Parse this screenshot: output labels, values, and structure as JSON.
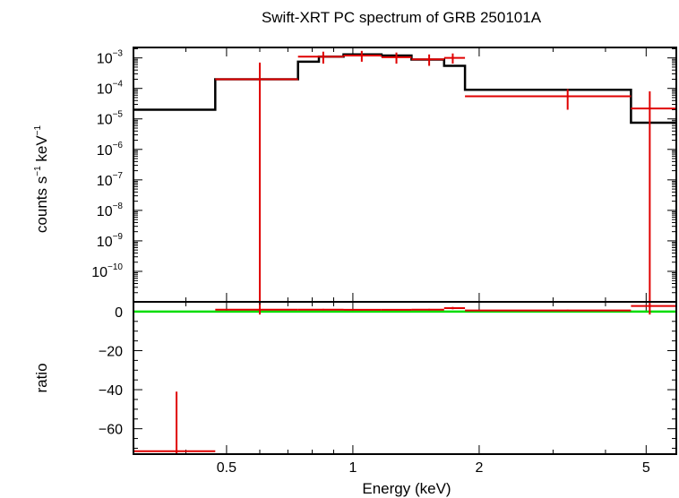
{
  "chart_data": [
    {
      "panel": "spectrum",
      "type": "scatter",
      "title": "Swift-XRT PC spectrum of GRB 250101A",
      "xlabel": "Energy (keV)",
      "ylabel": "counts s-1 keV-1",
      "ylabel_parts": {
        "base": "counts s",
        "exp1": "−1",
        "mid": " keV",
        "exp2": "−1"
      },
      "xscale": "log",
      "yscale": "log",
      "xlim": [
        0.3,
        5.9
      ],
      "ylim": [
        1e-11,
        0.0022
      ],
      "ytick_mantissa": "10",
      "yticks": [
        {
          "value": 0.001,
          "exp": "−3"
        },
        {
          "value": 0.0001,
          "exp": "−4"
        },
        {
          "value": 1e-05,
          "exp": "−5"
        },
        {
          "value": 1e-06,
          "exp": "−6"
        },
        {
          "value": 1e-07,
          "exp": "−7"
        },
        {
          "value": 1e-08,
          "exp": "−8"
        },
        {
          "value": 1e-09,
          "exp": "−9"
        },
        {
          "value": 1e-10,
          "exp": "−10"
        }
      ],
      "series": [
        {
          "name": "data",
          "color": "#e00000",
          "points": [
            {
              "x": 0.6,
              "xlo": 0.47,
              "xhi": 0.74,
              "y": 0.0002,
              "ylo": 1e-11,
              "yhi": 0.0007
            },
            {
              "x": 0.85,
              "xlo": 0.74,
              "xhi": 0.95,
              "y": 0.0011,
              "ylo": 0.00065,
              "yhi": 0.0016
            },
            {
              "x": 1.05,
              "xlo": 0.95,
              "xhi": 1.17,
              "y": 0.0012,
              "ylo": 0.00075,
              "yhi": 0.0017
            },
            {
              "x": 1.27,
              "xlo": 1.17,
              "xhi": 1.38,
              "y": 0.00105,
              "ylo": 0.00065,
              "yhi": 0.0015
            },
            {
              "x": 1.52,
              "xlo": 1.38,
              "xhi": 1.65,
              "y": 0.0009,
              "ylo": 0.00055,
              "yhi": 0.0013
            },
            {
              "x": 1.73,
              "xlo": 1.65,
              "xhi": 1.85,
              "y": 0.001,
              "ylo": 0.00065,
              "yhi": 0.0014
            },
            {
              "x": 3.25,
              "xlo": 1.85,
              "xhi": 4.6,
              "y": 5.5e-05,
              "ylo": 2e-05,
              "yhi": 9.5e-05
            },
            {
              "x": 5.1,
              "xlo": 4.6,
              "xhi": 5.9,
              "y": 2.2e-05,
              "ylo": 1e-11,
              "yhi": 8e-05
            }
          ]
        },
        {
          "name": "model",
          "type": "step",
          "color": "#000000",
          "bins": [
            {
              "xlo": 0.3,
              "xhi": 0.47,
              "y": 2e-05
            },
            {
              "xlo": 0.47,
              "xhi": 0.74,
              "y": 0.0002
            },
            {
              "xlo": 0.74,
              "xhi": 0.83,
              "y": 0.00075
            },
            {
              "xlo": 0.83,
              "xhi": 0.95,
              "y": 0.0011
            },
            {
              "xlo": 0.95,
              "xhi": 1.17,
              "y": 0.0013
            },
            {
              "xlo": 1.17,
              "xhi": 1.38,
              "y": 0.0012
            },
            {
              "xlo": 1.38,
              "xhi": 1.65,
              "y": 0.00088
            },
            {
              "xlo": 1.65,
              "xhi": 1.85,
              "y": 0.00055
            },
            {
              "xlo": 1.85,
              "xhi": 4.6,
              "y": 9e-05
            },
            {
              "xlo": 4.6,
              "xhi": 5.9,
              "y": 7.5e-06
            }
          ]
        }
      ]
    },
    {
      "panel": "ratio",
      "type": "scatter",
      "ylabel": "ratio",
      "xlabel": "Energy (keV)",
      "xscale": "log",
      "ylim": [
        -73,
        5
      ],
      "yticks": [
        0,
        -20,
        -40,
        -60
      ],
      "ytick_labels": [
        "0",
        "−20",
        "−40",
        "−60"
      ],
      "xticks": [
        0.5,
        1,
        2,
        5
      ],
      "xtick_labels": [
        "0.5",
        "1",
        "2",
        "5"
      ],
      "reference_line": {
        "y": 0,
        "color": "#00dd00"
      },
      "series": [
        {
          "name": "ratio",
          "color": "#e00000",
          "points": [
            {
              "x": 0.38,
              "xlo": 0.3,
              "xhi": 0.47,
              "y": -71.5,
              "ylo": -73,
              "yhi": -41
            },
            {
              "x": 0.6,
              "xlo": 0.47,
              "xhi": 0.74,
              "y": 1.0,
              "ylo": -1.5,
              "yhi": 3.5
            },
            {
              "x": 0.85,
              "xlo": 0.74,
              "xhi": 0.95,
              "y": 1.0,
              "ylo": 0.6,
              "yhi": 1.4
            },
            {
              "x": 1.05,
              "xlo": 0.95,
              "xhi": 1.17,
              "y": 0.9,
              "ylo": 0.6,
              "yhi": 1.3
            },
            {
              "x": 1.27,
              "xlo": 1.17,
              "xhi": 1.38,
              "y": 0.9,
              "ylo": 0.6,
              "yhi": 1.3
            },
            {
              "x": 1.52,
              "xlo": 1.38,
              "xhi": 1.65,
              "y": 1.0,
              "ylo": 0.6,
              "yhi": 1.4
            },
            {
              "x": 1.73,
              "xlo": 1.65,
              "xhi": 1.85,
              "y": 1.8,
              "ylo": 1.2,
              "yhi": 2.4
            },
            {
              "x": 3.25,
              "xlo": 1.85,
              "xhi": 4.6,
              "y": 0.6,
              "ylo": 0.2,
              "yhi": 1.0
            },
            {
              "x": 5.1,
              "xlo": 4.6,
              "xhi": 5.9,
              "y": 2.9,
              "ylo": -1.5,
              "yhi": 5.0
            }
          ]
        }
      ]
    }
  ]
}
